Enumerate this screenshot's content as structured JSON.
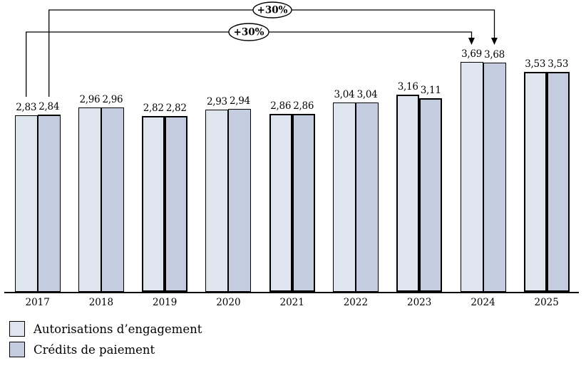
{
  "chart_data": {
    "type": "bar",
    "title": "",
    "xlabel": "",
    "ylabel": "",
    "yaxis": "hidden",
    "grid": false,
    "legend_position": "bottom-left",
    "value_format": "comma-decimal",
    "ylim": [
      0,
      4.7
    ],
    "categories": [
      "2017",
      "2018",
      "2019",
      "2020",
      "2021",
      "2022",
      "2023",
      "2024",
      "2025"
    ],
    "series": [
      {
        "name": "Autorisations d’engagement",
        "color": "#dfe5ef",
        "values": [
          2.83,
          2.96,
          2.82,
          2.93,
          2.86,
          3.04,
          3.16,
          3.69,
          3.53
        ],
        "labels": [
          "2,83",
          "2,96",
          "2,82",
          "2,93",
          "2,86",
          "3,04",
          "3,16",
          "3,69",
          "3,53"
        ]
      },
      {
        "name": "Crédits de paiement",
        "color": "#c3cddf",
        "values": [
          2.84,
          2.96,
          2.82,
          2.94,
          2.86,
          3.04,
          3.11,
          3.68,
          3.53
        ],
        "labels": [
          "2,84",
          "2,96",
          "2,82",
          "2,94",
          "2,86",
          "3,04",
          "3,11",
          "3,68",
          "3,53"
        ]
      }
    ],
    "emphasized_years": [
      "2019",
      "2021",
      "2023",
      "2025"
    ],
    "special_emphasis": [
      {
        "year": "2017",
        "series": "Crédits de paiement",
        "edge": "top"
      }
    ],
    "annotations": [
      {
        "label": "+30%",
        "series": "Crédits de paiement",
        "from": "2017",
        "to": "2024"
      },
      {
        "label": "+30%",
        "series": "Autorisations d’engagement",
        "from": "2017",
        "to": "2024"
      }
    ],
    "legend": [
      {
        "label": "Autorisations d’engagement"
      },
      {
        "label": "Crédits de paiement"
      }
    ]
  }
}
